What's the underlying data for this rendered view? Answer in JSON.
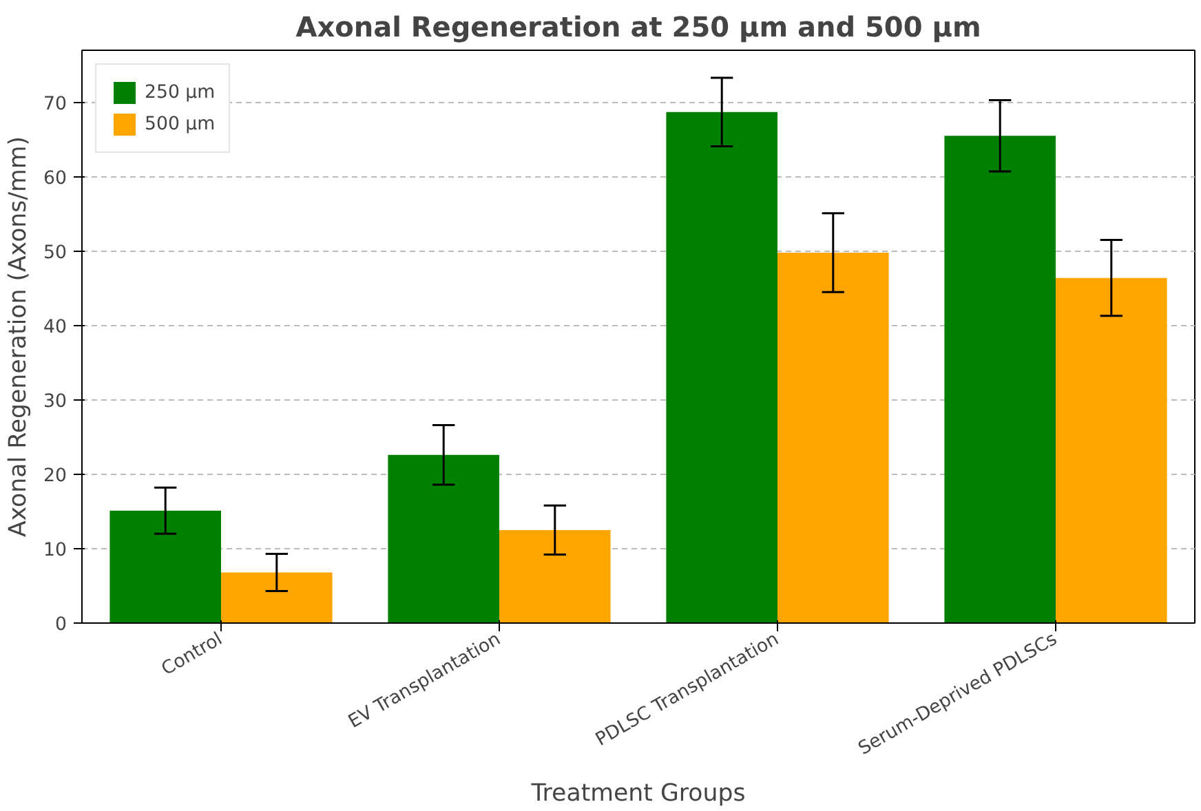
{
  "chart_data": {
    "type": "bar",
    "title": "Axonal Regeneration at 250 µm and 500 µm",
    "xlabel": "Treatment Groups",
    "ylabel": "Axonal Regeneration (Axons/mm)",
    "categories": [
      "Control",
      "EV Transplantation",
      "PDLSC Transplantation",
      "Serum-Deprived PDLSCs"
    ],
    "series": [
      {
        "name": "250 µm",
        "color": "#008000",
        "values": [
          15.1,
          22.6,
          68.7,
          65.5
        ],
        "errors": [
          3.1,
          4,
          4.6,
          4.8
        ]
      },
      {
        "name": "500 µm",
        "color": "#ffa500",
        "values": [
          6.8,
          12.5,
          49.8,
          46.4
        ],
        "errors": [
          2.5,
          3.3,
          5.3,
          5.1
        ]
      }
    ],
    "ylim": [
      0,
      77
    ],
    "yticks": [
      0,
      10,
      20,
      30,
      40,
      50,
      60,
      70
    ],
    "grid": "y",
    "legend": "top left"
  }
}
